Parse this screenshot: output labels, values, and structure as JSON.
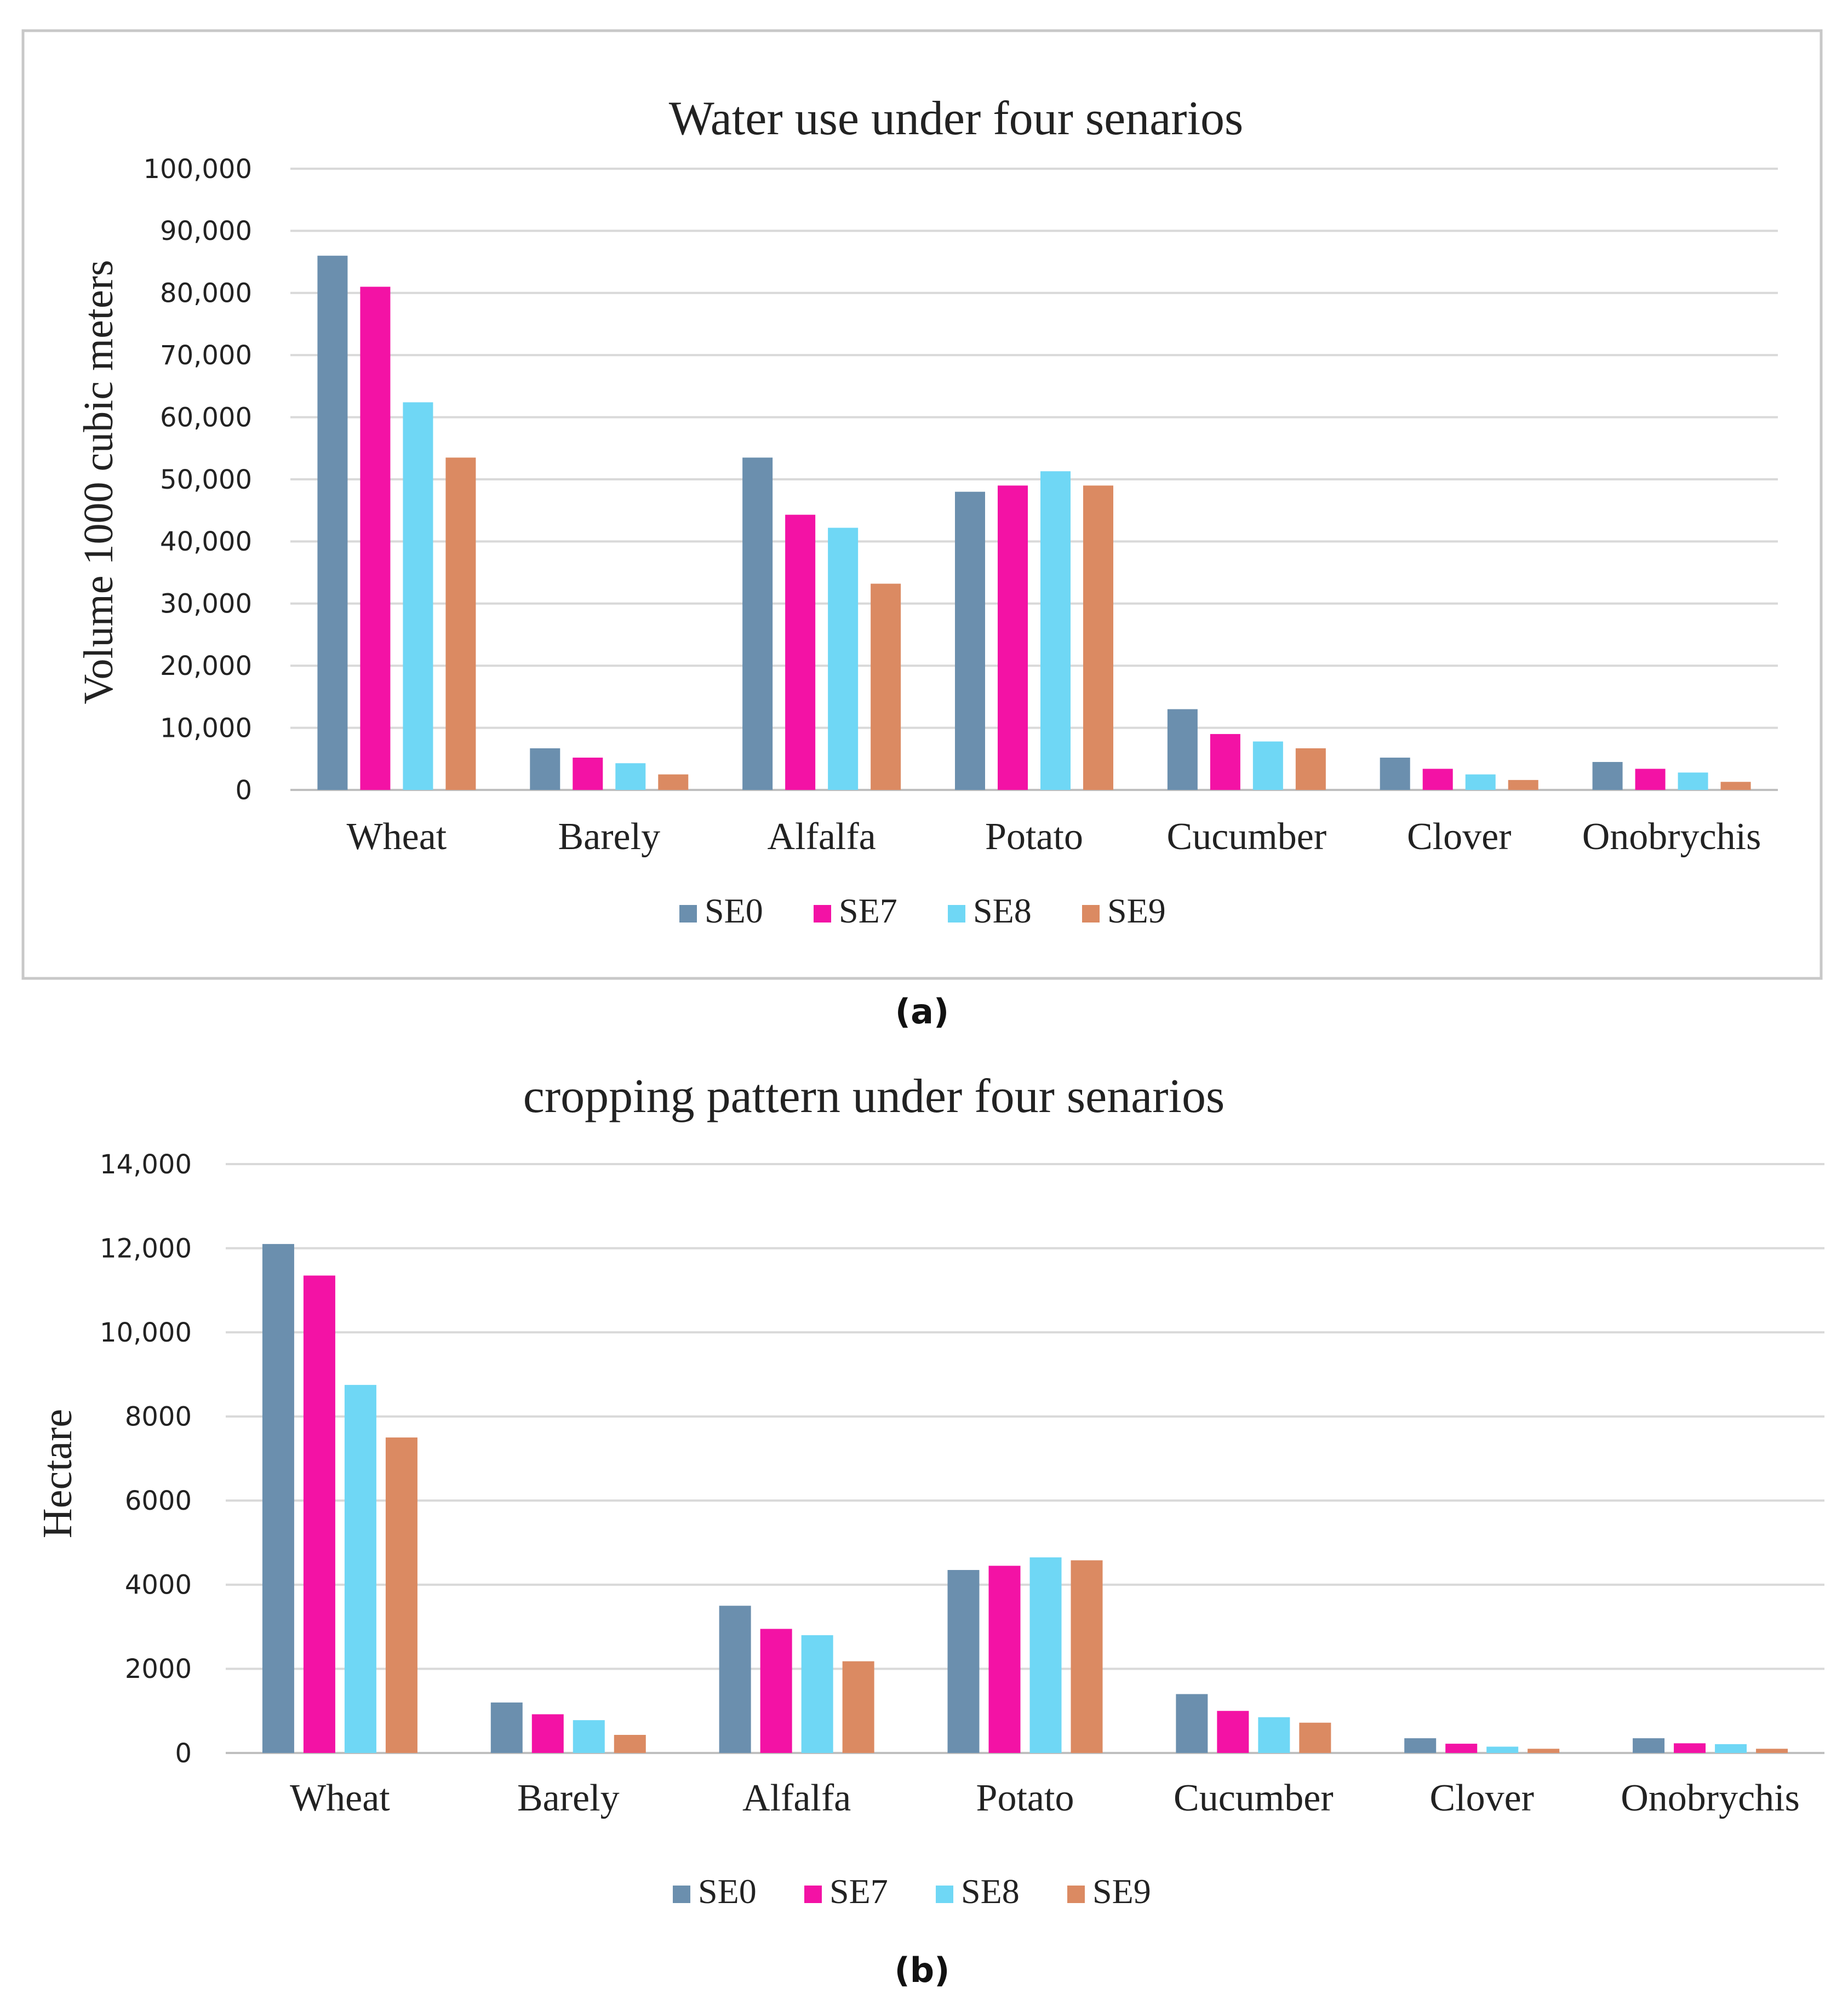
{
  "colors": {
    "SE0": "#6b8fae",
    "SE7": "#f312a5",
    "SE8": "#6fd7f5",
    "SE9": "#db8a62",
    "grid": "#d9d9d9",
    "frame": "#c8c8c8"
  },
  "chart_data": [
    {
      "type": "bar",
      "caption": "(a)",
      "title": "Water use under four senarios",
      "ylabel": "Volume 1000 cubic meters",
      "xlabel": "",
      "ylim": [
        0,
        100000
      ],
      "yticks": [
        0,
        10000,
        20000,
        30000,
        40000,
        50000,
        60000,
        70000,
        80000,
        90000,
        100000
      ],
      "ytick_labels": [
        "0",
        "10,000",
        "20,000",
        "30,000",
        "40,000",
        "50,000",
        "60,000",
        "70,000",
        "80,000",
        "90,000",
        "100,000"
      ],
      "grid": true,
      "legend_position": "bottom",
      "categories": [
        "Wheat",
        "Barely",
        "Alfalfa",
        "Potato",
        "Cucumber",
        "Clover",
        "Onobrychis"
      ],
      "series": [
        {
          "name": "SE0",
          "values": [
            86000,
            6700,
            53500,
            48000,
            13000,
            5200,
            4500
          ]
        },
        {
          "name": "SE7",
          "values": [
            81000,
            5200,
            44300,
            49000,
            9000,
            3400,
            3400
          ]
        },
        {
          "name": "SE8",
          "values": [
            62400,
            4300,
            42200,
            51300,
            7800,
            2500,
            2800
          ]
        },
        {
          "name": "SE9",
          "values": [
            53500,
            2500,
            33200,
            49000,
            6700,
            1600,
            1300
          ]
        }
      ]
    },
    {
      "type": "bar",
      "caption": "(b)",
      "title": "cropping pattern under four senarios",
      "ylabel": "Hectare",
      "xlabel": "",
      "ylim": [
        0,
        14000
      ],
      "yticks": [
        0,
        2000,
        4000,
        6000,
        8000,
        10000,
        12000,
        14000
      ],
      "ytick_labels": [
        "0",
        "2000",
        "4000",
        "6000",
        "8000",
        "10,000",
        "12,000",
        "14,000"
      ],
      "grid": true,
      "legend_position": "bottom",
      "categories": [
        "Wheat",
        "Barely",
        "Alfalfa",
        "Potato",
        "Cucumber",
        "Clover",
        "Onobrychis"
      ],
      "series": [
        {
          "name": "SE0",
          "values": [
            12100,
            1200,
            3500,
            4350,
            1400,
            350,
            350
          ]
        },
        {
          "name": "SE7",
          "values": [
            11350,
            920,
            2950,
            4450,
            1000,
            220,
            230
          ]
        },
        {
          "name": "SE8",
          "values": [
            8750,
            780,
            2800,
            4650,
            850,
            150,
            210
          ]
        },
        {
          "name": "SE9",
          "values": [
            7500,
            430,
            2180,
            4580,
            720,
            100,
            100
          ]
        }
      ]
    }
  ]
}
